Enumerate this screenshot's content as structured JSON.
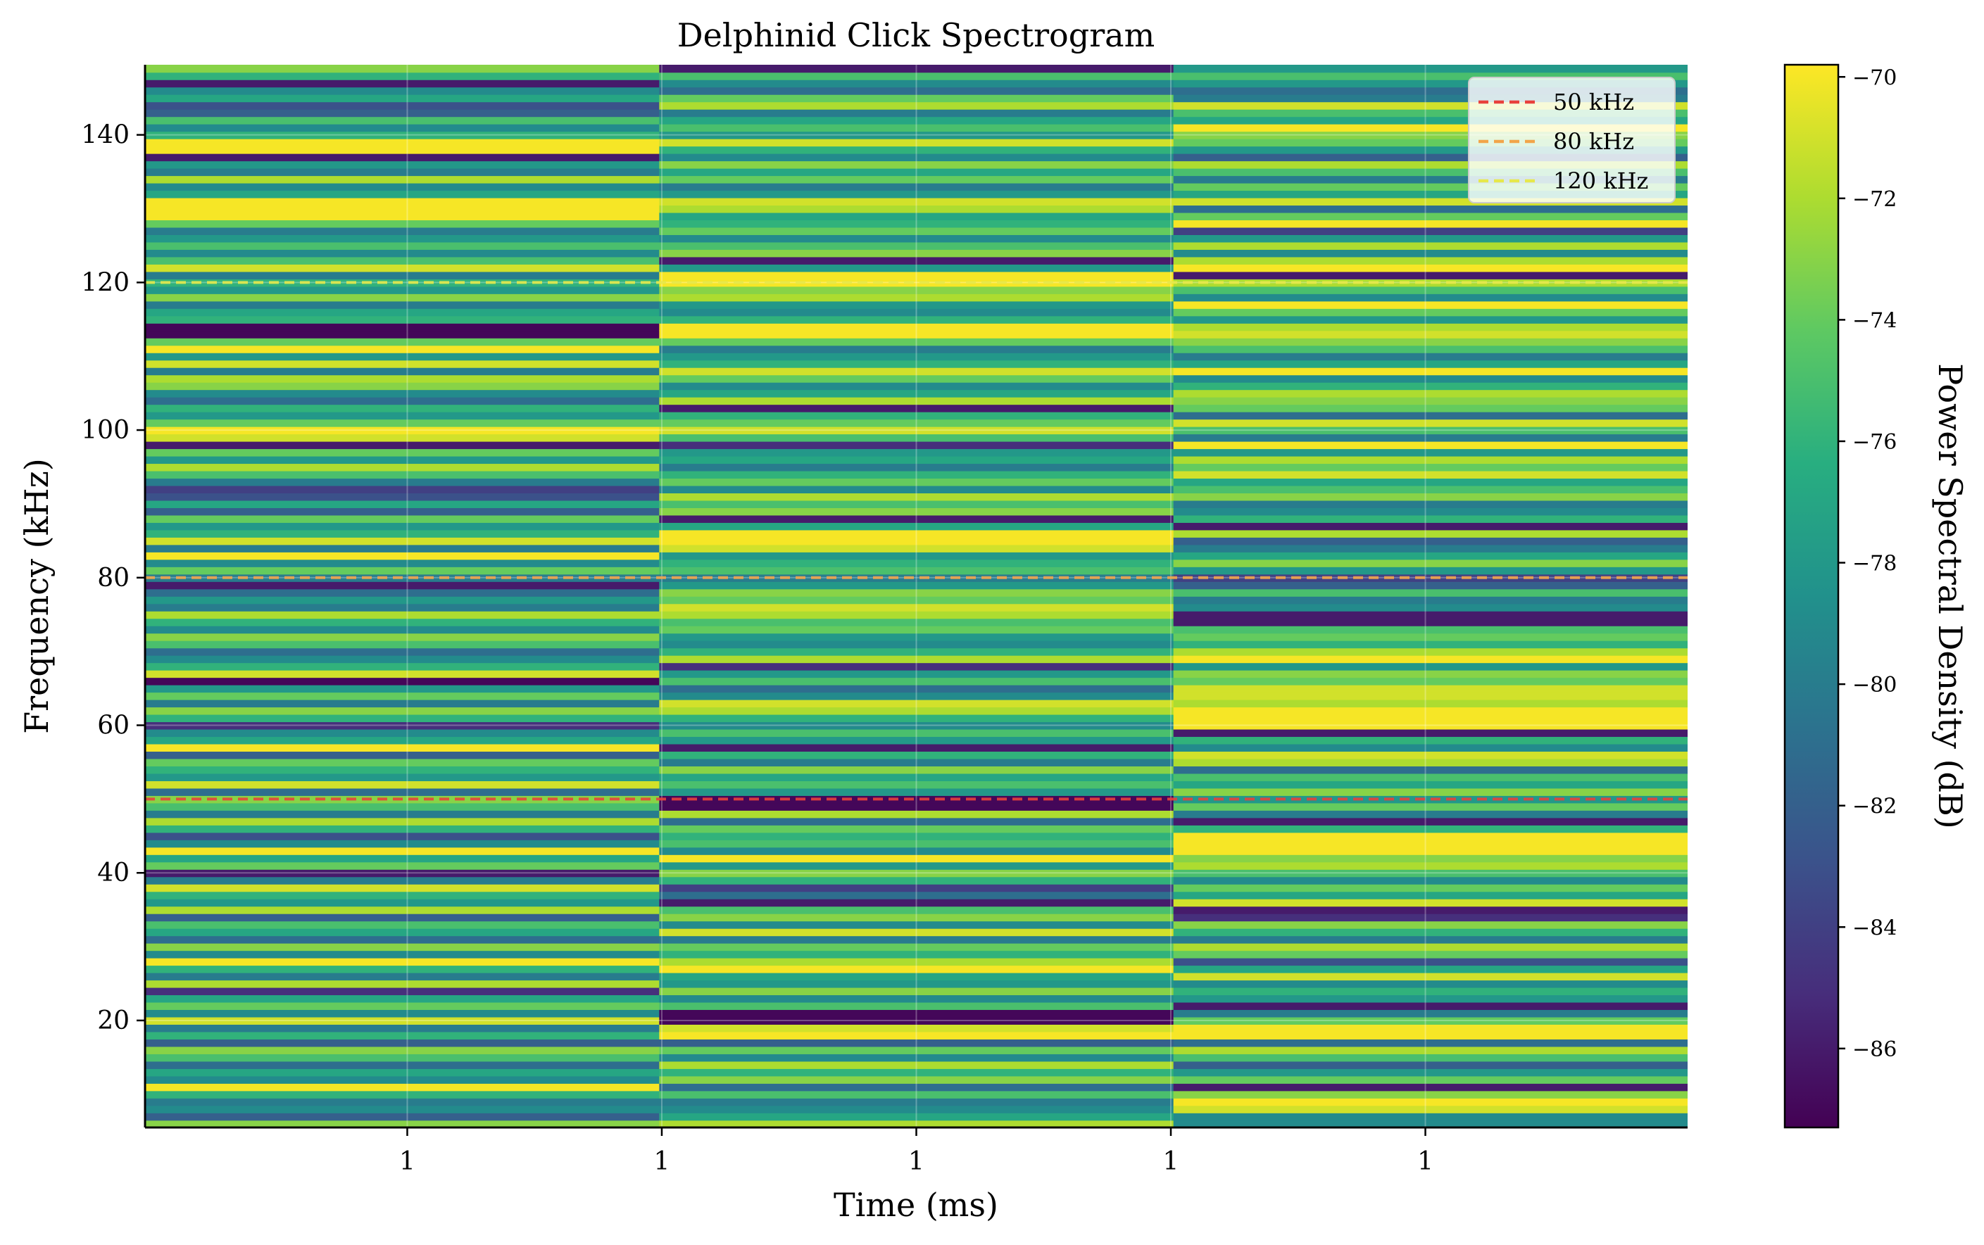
{
  "chart_data": {
    "type": "heatmap",
    "title": "Delphinid Click Spectrogram",
    "xlabel": "Time (ms)",
    "ylabel": "Frequency (kHz)",
    "colorbar_label": "Power Spectral Density (dB)",
    "colormap": "viridis",
    "x_tick_labels": [
      "1",
      "1",
      "1",
      "1",
      "1"
    ],
    "y_ticks": [
      20,
      40,
      60,
      80,
      100,
      120,
      140
    ],
    "ylim": [
      5.5,
      149.5
    ],
    "colorbar_ticks": [
      -70,
      -72,
      -74,
      -76,
      -78,
      -80,
      -82,
      -84,
      -86
    ],
    "clim": [
      -87.3,
      -69.8
    ],
    "grid": true,
    "legend_position": "top-right",
    "time_segments": 3,
    "frequency_bin_start_khz": 5.5,
    "frequency_bin_step_khz": 1,
    "psd_db": [
      [
        -73,
        -82,
        -79,
        -80,
        -76,
        -70,
        -79,
        -77,
        -81,
        -75,
        -73,
        -82,
        -76,
        -80,
        -71,
        -79,
        -74,
        -77,
        -85,
        -72,
        -80,
        -76,
        -70,
        -79,
        -73,
        -81,
        -77,
        -75,
        -82,
        -72,
        -78,
        -76,
        -71,
        -80,
        -86,
        -74,
        -77,
        -70,
        -79,
        -83,
        -76,
        -72,
        -80,
        -75,
        -73,
        -81,
        -71,
        -78,
        -76,
        -74,
        -82,
        -70,
        -77,
        -79,
        -85,
        -76,
        -73,
        -80,
        -74,
        -78,
        -87,
        -71,
        -76,
        -79,
        -81,
        -75,
        -73,
        -79,
        -76,
        -72,
        -80,
        -78,
        -81,
        -86,
        -80,
        -74,
        -79,
        -70,
        -80,
        -71,
        -76,
        -78,
        -74,
        -82,
        -77,
        -83,
        -84,
        -80,
        -75,
        -72,
        -78,
        -74,
        -86,
        -71,
        -70,
        -74,
        -78,
        -76,
        -81,
        -79,
        -73,
        -72,
        -80,
        -71,
        -78,
        -70,
        -74,
        -87,
        -87,
        -76,
        -77,
        -80,
        -73,
        -78,
        -76,
        -80,
        -71,
        -75,
        -79,
        -75,
        -78,
        -80,
        -74,
        -70,
        -70,
        -70,
        -77,
        -79,
        -72,
        -80,
        -78,
        -86,
        -70,
        -70,
        -76,
        -79,
        -75,
        -82,
        -83,
        -77,
        -79,
        -86,
        -76,
        -73
      ],
      [
        -72,
        -77,
        -79,
        -80,
        -75,
        -81,
        -73,
        -76,
        -72,
        -79,
        -74,
        -82,
        -70,
        -71,
        -87,
        -87,
        -75,
        -79,
        -73,
        -78,
        -77,
        -70,
        -72,
        -76,
        -74,
        -80,
        -71,
        -79,
        -73,
        -75,
        -86,
        -81,
        -84,
        -76,
        -73,
        -78,
        -70,
        -79,
        -75,
        -76,
        -74,
        -81,
        -72,
        -87,
        -87,
        -78,
        -75,
        -77,
        -73,
        -80,
        -76,
        -86,
        -78,
        -75,
        -79,
        -76,
        -72,
        -71,
        -79,
        -81,
        -75,
        -78,
        -85,
        -72,
        -76,
        -79,
        -78,
        -74,
        -75,
        -72,
        -71,
        -74,
        -73,
        -78,
        -80,
        -75,
        -76,
        -78,
        -71,
        -70,
        -70,
        -77,
        -86,
        -73,
        -75,
        -72,
        -79,
        -74,
        -76,
        -80,
        -77,
        -78,
        -85,
        -75,
        -71,
        -74,
        -76,
        -86,
        -72,
        -77,
        -79,
        -74,
        -71,
        -76,
        -78,
        -80,
        -74,
        -70,
        -70,
        -76,
        -79,
        -78,
        -72,
        -73,
        -70,
        -70,
        -78,
        -86,
        -73,
        -75,
        -79,
        -74,
        -76,
        -77,
        -72,
        -71,
        -78,
        -80,
        -74,
        -77,
        -73,
        -79,
        -76,
        -71,
        -78,
        -75,
        -77,
        -80,
        -72,
        -74,
        -81,
        -79,
        -75,
        -86
      ],
      [
        -79,
        -79,
        -71,
        -70,
        -73,
        -86,
        -74,
        -78,
        -82,
        -75,
        -72,
        -81,
        -70,
        -70,
        -74,
        -80,
        -86,
        -78,
        -76,
        -79,
        -71,
        -77,
        -83,
        -74,
        -72,
        -80,
        -76,
        -73,
        -85,
        -86,
        -71,
        -77,
        -74,
        -79,
        -75,
        -72,
        -73,
        -70,
        -70,
        -70,
        -76,
        -86,
        -80,
        -74,
        -78,
        -73,
        -77,
        -75,
        -81,
        -72,
        -71,
        -79,
        -76,
        -86,
        -70,
        -70,
        -70,
        -72,
        -71,
        -71,
        -74,
        -73,
        -78,
        -70,
        -72,
        -76,
        -74,
        -75,
        -86,
        -86,
        -79,
        -80,
        -75,
        -82,
        -84,
        -78,
        -73,
        -77,
        -80,
        -82,
        -72,
        -86,
        -76,
        -79,
        -80,
        -73,
        -75,
        -77,
        -71,
        -74,
        -72,
        -78,
        -70,
        -80,
        -75,
        -71,
        -81,
        -74,
        -73,
        -72,
        -76,
        -79,
        -70,
        -77,
        -80,
        -75,
        -73,
        -71,
        -72,
        -78,
        -74,
        -70,
        -79,
        -75,
        -72,
        -86,
        -70,
        -72,
        -79,
        -72,
        -78,
        -84,
        -70,
        -74,
        -81,
        -71,
        -77,
        -74,
        -80,
        -75,
        -72,
        -82,
        -78,
        -74,
        -73,
        -70,
        -77,
        -75,
        -71,
        -80,
        -81,
        -78,
        -75,
        -78
      ]
    ],
    "reference_lines": [
      {
        "label": "50 kHz",
        "frequency_khz": 50,
        "color": "#e8413c",
        "style": "dashed"
      },
      {
        "label": "80 kHz",
        "frequency_khz": 80,
        "color": "#f2a54a",
        "style": "dashed"
      },
      {
        "label": "120 kHz",
        "frequency_khz": 120,
        "color": "#e6e84a",
        "style": "dashed"
      }
    ]
  }
}
